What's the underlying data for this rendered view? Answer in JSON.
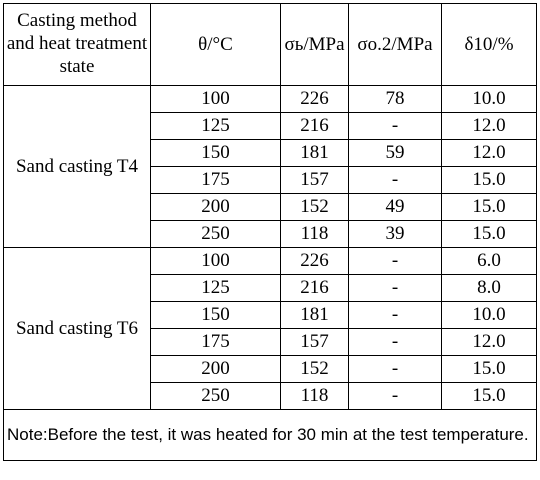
{
  "headers": {
    "method": "Casting method and heat treatment state",
    "temp": "θ/°C",
    "sigma_b": "σь/MPa",
    "sigma_02": "σo.2/MPa",
    "delta10": "δ10/%"
  },
  "groups": [
    {
      "method": "Sand casting T4",
      "rows": [
        [
          "100",
          "226",
          "78",
          "10.0"
        ],
        [
          "125",
          "216",
          "-",
          "12.0"
        ],
        [
          "150",
          "181",
          "59",
          "12.0"
        ],
        [
          "175",
          "157",
          "-",
          "15.0"
        ],
        [
          "200",
          "152",
          "49",
          "15.0"
        ],
        [
          "250",
          "118",
          "39",
          "15.0"
        ]
      ]
    },
    {
      "method": "Sand casting T6",
      "rows": [
        [
          "100",
          "226",
          "-",
          "6.0"
        ],
        [
          "125",
          "216",
          "-",
          "8.0"
        ],
        [
          "150",
          "181",
          "-",
          "10.0"
        ],
        [
          "175",
          "157",
          "-",
          "12.0"
        ],
        [
          "200",
          "152",
          "-",
          "15.0"
        ],
        [
          "250",
          "118",
          "-",
          "15.0"
        ]
      ]
    }
  ],
  "note": "Note:Before the test, it was heated for 30 min at the test temperature."
}
